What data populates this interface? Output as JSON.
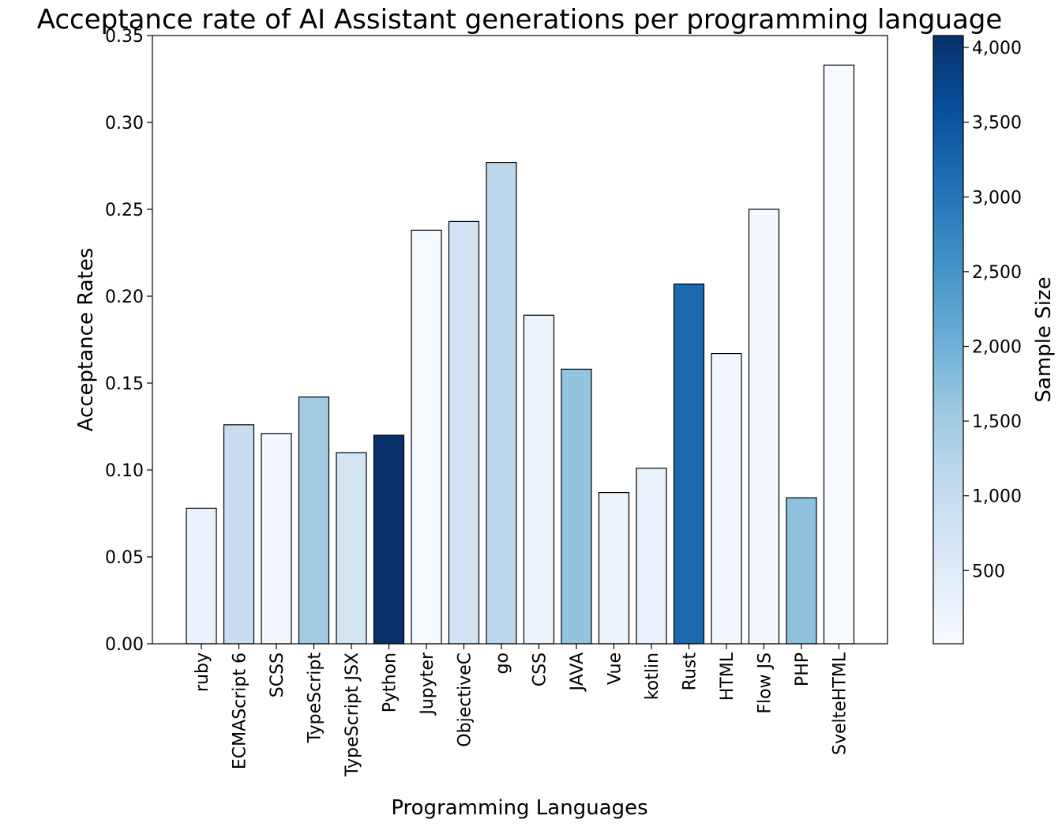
{
  "chart_data": {
    "type": "bar",
    "title": "Acceptance rate of AI Assistant generations per programming language",
    "xlabel": "Programming Languages",
    "ylabel": "Acceptance Rates",
    "ylim": [
      0,
      0.35
    ],
    "y_ticks": [
      "0.00",
      "0.05",
      "0.10",
      "0.15",
      "0.20",
      "0.25",
      "0.30",
      "0.35"
    ],
    "categories": [
      "ruby",
      "ECMAScript 6",
      "SCSS",
      "TypeScript",
      "TypeScript JSX",
      "Python",
      "Jupyter",
      "ObjectiveC",
      "go",
      "CSS",
      "JAVA",
      "Vue",
      "kotlin",
      "Rust",
      "HTML",
      "Flow JS",
      "PHP",
      "SvelteHTML"
    ],
    "values": [
      0.078,
      0.126,
      0.121,
      0.142,
      0.11,
      0.12,
      0.238,
      0.243,
      0.277,
      0.189,
      0.158,
      0.087,
      0.101,
      0.207,
      0.167,
      0.25,
      0.084,
      0.333
    ],
    "sample_sizes": [
      300,
      950,
      100,
      1500,
      750,
      4080,
      50,
      800,
      1150,
      250,
      1650,
      250,
      300,
      3200,
      100,
      100,
      1700,
      10
    ],
    "grid": false,
    "bar_edge_color": "#000000",
    "colormap": "Blues",
    "colorbar": {
      "label": "Sample Size",
      "min": 10,
      "max": 4080,
      "ticks": [
        500,
        1000,
        1500,
        2000,
        2500,
        3000,
        3500,
        4000
      ],
      "tick_labels": [
        "500",
        "1,000",
        "1,500",
        "2,000",
        "2,500",
        "3,000",
        "3,500",
        "4,000"
      ]
    }
  }
}
